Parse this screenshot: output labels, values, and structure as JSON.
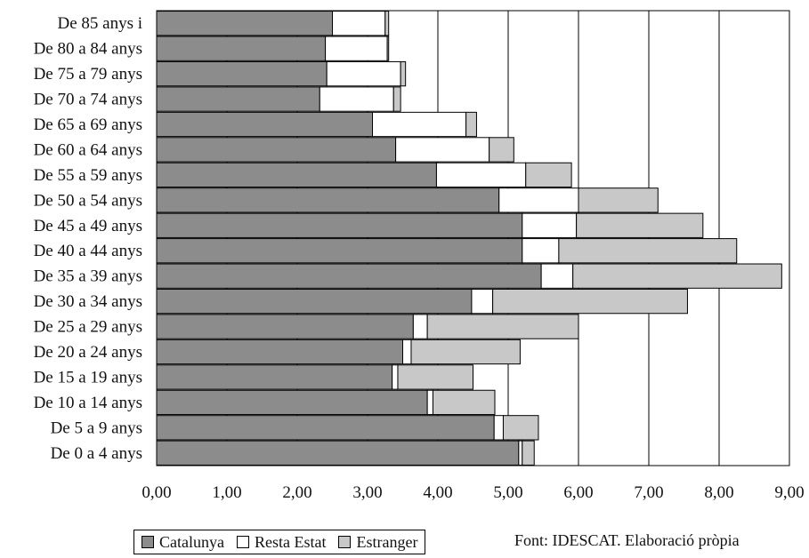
{
  "chart_data": {
    "type": "bar",
    "orientation": "horizontal",
    "stacked": true,
    "categories": [
      "De 85 anys i",
      "De 80 a 84 anys",
      "De 75 a 79 anys",
      "De 70 a 74 anys",
      "De 65 a 69 anys",
      "De 60 a 64 anys",
      "De 55 a 59 anys",
      "De 50 a 54 anys",
      "De 45 a 49 anys",
      "De 40 a 44 anys",
      "De 35 a 39 anys",
      "De 30 a 34 anys",
      "De 25 a 29 anys",
      "De 20 a 24 anys",
      "De 15 a 19 anys",
      "De 10 a 14 anys",
      "De 5 a 9 anys",
      "De 0 a 4 anys"
    ],
    "series": [
      {
        "name": "Catalunya",
        "color": "#8c8c8c",
        "values": [
          2.5,
          2.4,
          2.42,
          2.32,
          3.07,
          3.4,
          3.98,
          4.87,
          5.2,
          5.2,
          5.47,
          4.48,
          3.65,
          3.5,
          3.35,
          3.85,
          4.8,
          5.15
        ]
      },
      {
        "name": "Resta Estat",
        "color": "#ffffff",
        "values": [
          0.75,
          0.88,
          1.05,
          1.05,
          1.33,
          1.33,
          1.27,
          1.13,
          0.77,
          0.52,
          0.45,
          0.3,
          0.2,
          0.12,
          0.08,
          0.08,
          0.13,
          0.05
        ]
      },
      {
        "name": "Estranger",
        "color": "#c8c8c8",
        "values": [
          0.05,
          0.02,
          0.07,
          0.1,
          0.15,
          0.35,
          0.65,
          1.13,
          1.8,
          2.53,
          2.97,
          2.77,
          2.15,
          1.55,
          1.07,
          0.88,
          0.5,
          0.17
        ]
      }
    ],
    "x_ticks": [
      "0,00",
      "1,00",
      "2,00",
      "3,00",
      "4,00",
      "5,00",
      "6,00",
      "7,00",
      "8,00",
      "9,00"
    ],
    "xlim": [
      0,
      9
    ],
    "grid": "vertical",
    "legend_position": "bottom-left",
    "title": "",
    "xlabel": "",
    "ylabel": ""
  },
  "source_note": "Font: IDESCAT. Elaboració pròpia"
}
